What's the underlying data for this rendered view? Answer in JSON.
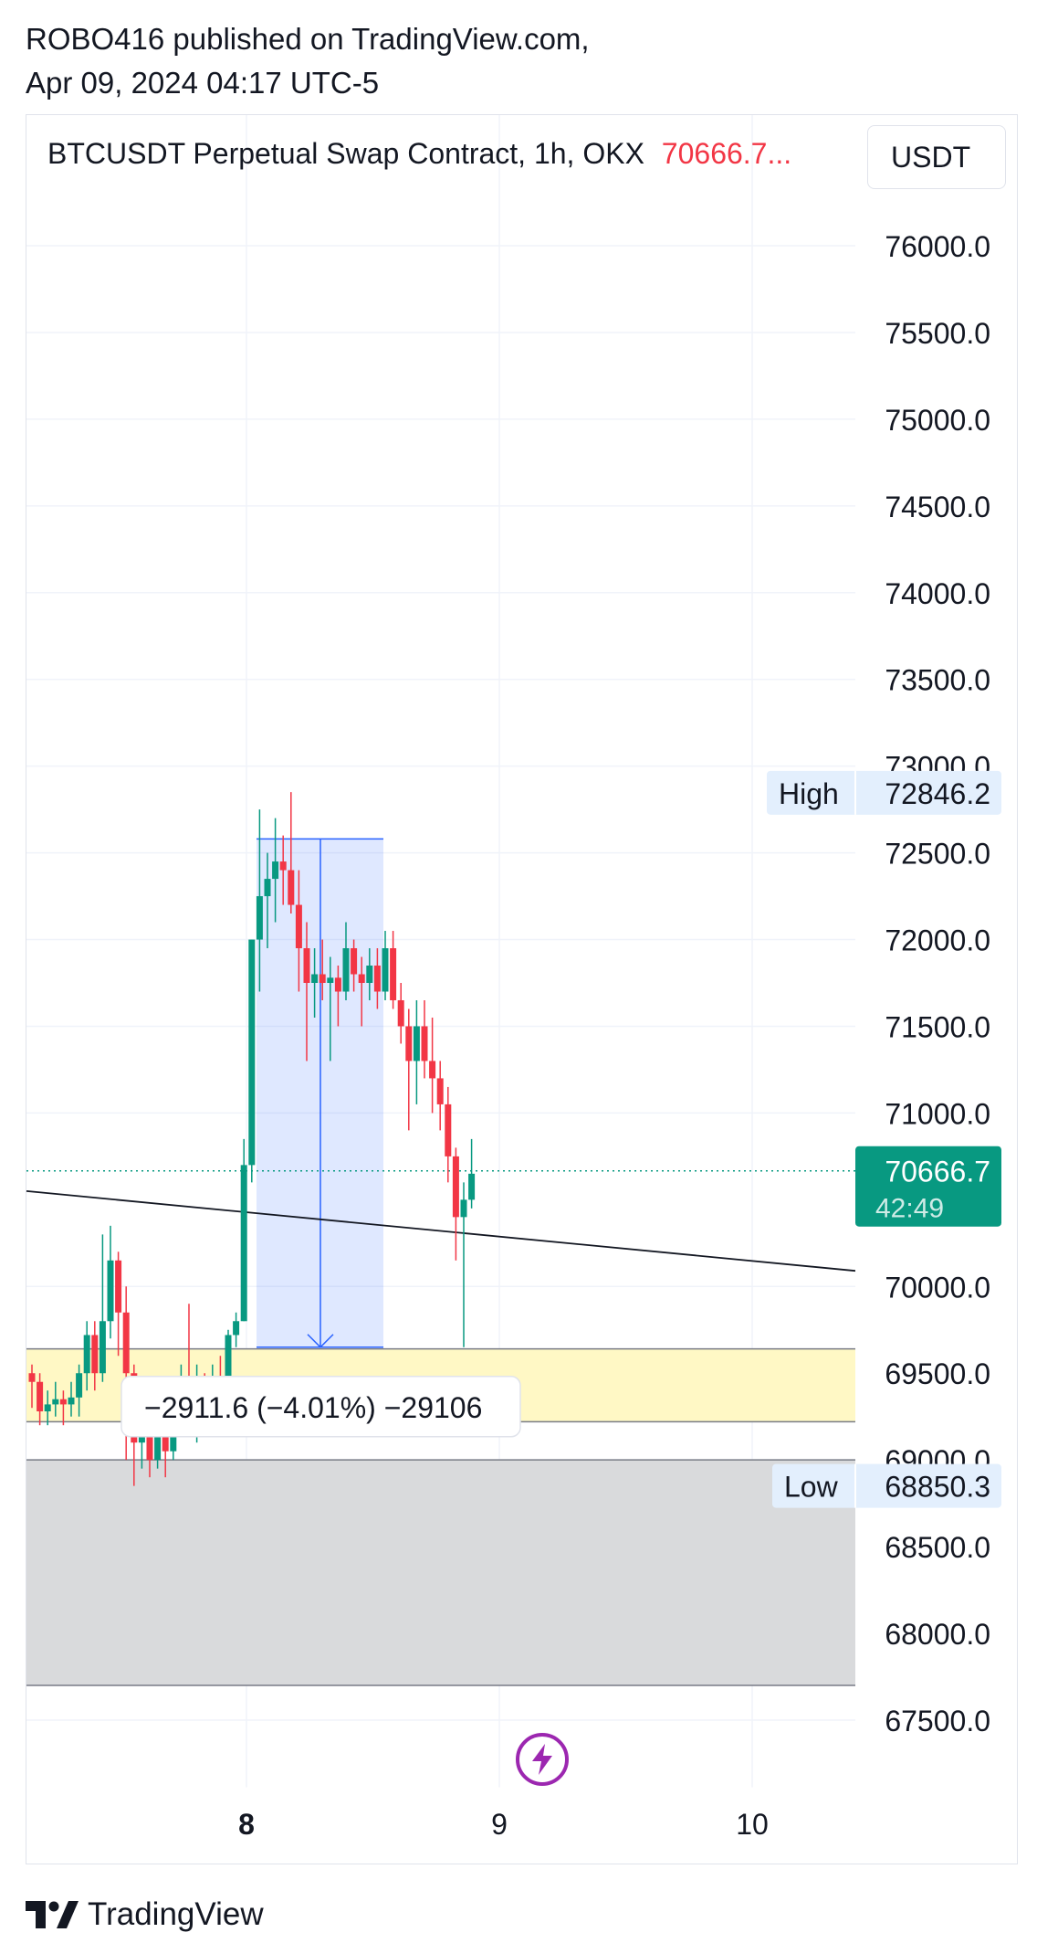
{
  "publisher": {
    "line1": "ROBO416 published on TradingView.com,",
    "line2": "Apr 09, 2024 04:17 UTC-5"
  },
  "header": {
    "symbol": "BTCUSDT Perpetual Swap Contract, 1h, OKX",
    "price": "70666.7",
    "ellipsis": "...",
    "currency": "USDT"
  },
  "branding": {
    "logo_text": "TradingView"
  },
  "colors": {
    "up": "#089981",
    "down": "#f23645",
    "measure": "#2962ff",
    "high_low_tag": "#e3effd",
    "supply_zone": "#fff8c5",
    "demand_zone": "#d9dadc",
    "accent_purple": "#9c27b0"
  },
  "icons": [
    "tradingview-logo-icon",
    "lightning-icon",
    "arrow-down-icon"
  ],
  "chart_data": {
    "type": "candlestick",
    "timeframe": "1h",
    "y_axis": {
      "ticks": [
        76000,
        75500,
        75000,
        74500,
        74000,
        73500,
        73000,
        72500,
        72000,
        71500,
        71000,
        70000,
        69500,
        69000,
        68500,
        68000,
        67500
      ],
      "tick_labels": [
        "76000.0",
        "75500.0",
        "75000.0",
        "74500.0",
        "74000.0",
        "73500.0",
        "73000.0",
        "72500.0",
        "72000.0",
        "71500.0",
        "71000.0",
        "70000.0",
        "69500.0",
        "69000.0",
        "68500.0",
        "68000.0",
        "67500.0"
      ],
      "range": [
        67300,
        76400
      ]
    },
    "x_axis": {
      "labels": [
        "8",
        "9",
        "10"
      ],
      "bold_label": "8"
    },
    "last_price": {
      "value": 70666.7,
      "label": "70666.7",
      "countdown": "42:49"
    },
    "high": {
      "label": "High",
      "value": "72846.2",
      "y": 72846.2
    },
    "low": {
      "label": "Low",
      "value": "68850.3",
      "y": 68850.3
    },
    "trendline": {
      "from": 70550,
      "to": 70090
    },
    "zones": [
      {
        "name": "supply",
        "from": 69220,
        "to": 69640
      },
      {
        "name": "demand",
        "from": 67700,
        "to": 69000
      }
    ],
    "measure": {
      "top": 72580,
      "bottom": 69650,
      "label": "−2911.6 (−4.01%) −29106"
    },
    "candles": [
      [
        69500,
        69450,
        69550,
        69300
      ],
      [
        69450,
        69280,
        69500,
        69200
      ],
      [
        69280,
        69320,
        69400,
        69200
      ],
      [
        69320,
        69350,
        69450,
        69250
      ],
      [
        69350,
        69320,
        69400,
        69200
      ],
      [
        69320,
        69360,
        69450,
        69250
      ],
      [
        69360,
        69500,
        69550,
        69250
      ],
      [
        69500,
        69720,
        69800,
        69400
      ],
      [
        69720,
        69500,
        69800,
        69400
      ],
      [
        69500,
        69800,
        70300,
        69450
      ],
      [
        69800,
        70150,
        70350,
        69700
      ],
      [
        70150,
        69850,
        70200,
        69600
      ],
      [
        69850,
        69500,
        70000,
        69000
      ],
      [
        69500,
        69100,
        69550,
        68850
      ],
      [
        69100,
        69250,
        69350,
        68950
      ],
      [
        69250,
        69000,
        69400,
        68900
      ],
      [
        69000,
        69250,
        69300,
        68950
      ],
      [
        69250,
        69050,
        69350,
        68900
      ],
      [
        69050,
        69350,
        69400,
        69000
      ],
      [
        69350,
        69480,
        69550,
        69300
      ],
      [
        69480,
        69200,
        69900,
        69150
      ],
      [
        69200,
        69450,
        69550,
        69100
      ],
      [
        69450,
        69250,
        69500,
        69150
      ],
      [
        69250,
        69450,
        69550,
        69200
      ],
      [
        69450,
        69350,
        69600,
        69300
      ],
      [
        69350,
        69720,
        69750,
        69300
      ],
      [
        69720,
        69800,
        69850,
        69650
      ],
      [
        69800,
        70700,
        70850,
        69800
      ],
      [
        70700,
        72000,
        72000,
        70600
      ],
      [
        72000,
        72250,
        72750,
        71700
      ],
      [
        72250,
        72350,
        72500,
        71950
      ],
      [
        72350,
        72450,
        72700,
        72100
      ],
      [
        72450,
        72400,
        72600,
        72200
      ],
      [
        72400,
        72200,
        72850,
        72150
      ],
      [
        72200,
        71950,
        72400,
        71700
      ],
      [
        71950,
        71750,
        72100,
        71300
      ],
      [
        71750,
        71800,
        71950,
        71550
      ],
      [
        71800,
        71750,
        72000,
        71650
      ],
      [
        71750,
        71780,
        71900,
        71300
      ],
      [
        71780,
        71700,
        71850,
        71500
      ],
      [
        71700,
        71950,
        72100,
        71650
      ],
      [
        71950,
        71800,
        72000,
        71700
      ],
      [
        71800,
        71750,
        71900,
        71500
      ],
      [
        71750,
        71850,
        71950,
        71650
      ],
      [
        71850,
        71700,
        71950,
        71600
      ],
      [
        71700,
        71950,
        72050,
        71650
      ],
      [
        71950,
        71650,
        72050,
        71600
      ],
      [
        71650,
        71500,
        71750,
        71400
      ],
      [
        71500,
        71300,
        71600,
        70900
      ],
      [
        71300,
        71500,
        71650,
        71050
      ],
      [
        71500,
        71300,
        71650,
        71200
      ],
      [
        71300,
        71200,
        71550,
        71000
      ],
      [
        71200,
        71050,
        71300,
        70900
      ],
      [
        71050,
        70750,
        71150,
        70600
      ],
      [
        70750,
        70400,
        70800,
        70150
      ],
      [
        70400,
        70500,
        70600,
        69650
      ],
      [
        70500,
        70650,
        70850,
        70450
      ]
    ]
  }
}
